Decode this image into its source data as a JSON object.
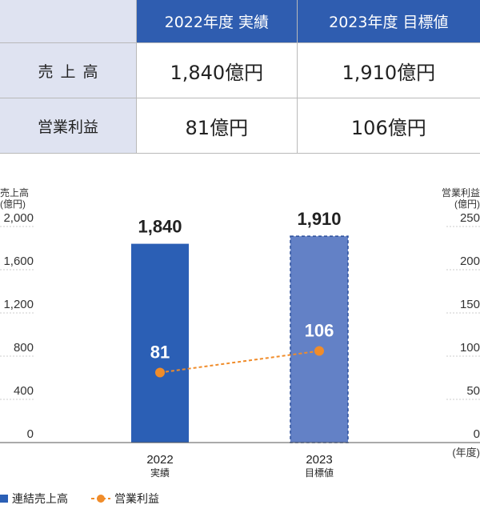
{
  "table": {
    "columns": [
      "2022年度 実績",
      "2023年度 目標値"
    ],
    "rows": [
      {
        "label": "売上高",
        "values": [
          "1,840億円",
          "1,910億円"
        ]
      },
      {
        "label": "営業利益",
        "values": [
          "81億円",
          "106億円"
        ]
      }
    ]
  },
  "chart_data": {
    "type": "bar",
    "categories": [
      {
        "year": "2022",
        "sub": "実績"
      },
      {
        "year": "2023",
        "sub": "目標値"
      }
    ],
    "series": [
      {
        "name": "連結売上高",
        "kind": "bar",
        "axis": "left",
        "values": [
          1840,
          1910
        ],
        "labels": [
          "1,840",
          "1,910"
        ],
        "colors": [
          "#2b5fb5",
          "#6381c6"
        ],
        "styles": [
          "solid",
          "dashed-outline"
        ]
      },
      {
        "name": "営業利益",
        "kind": "line",
        "axis": "right",
        "values": [
          81,
          106
        ],
        "labels": [
          "81",
          "106"
        ],
        "color": "#f08c2a",
        "style": "dashed"
      }
    ],
    "y_left": {
      "label_lines": [
        "売上高",
        "(億円)"
      ],
      "ylim": [
        0,
        2000
      ],
      "ticks": [
        "0",
        "400",
        "800",
        "1,200",
        "1,600",
        "2,000"
      ]
    },
    "y_right": {
      "label_lines": [
        "営業利益",
        "(億円)"
      ],
      "ylim": [
        0,
        250
      ],
      "ticks": [
        "0",
        "50",
        "100",
        "150",
        "200",
        "250"
      ]
    },
    "x_unit": "(年度)",
    "grid": false,
    "legend_position": "bottom-left"
  }
}
